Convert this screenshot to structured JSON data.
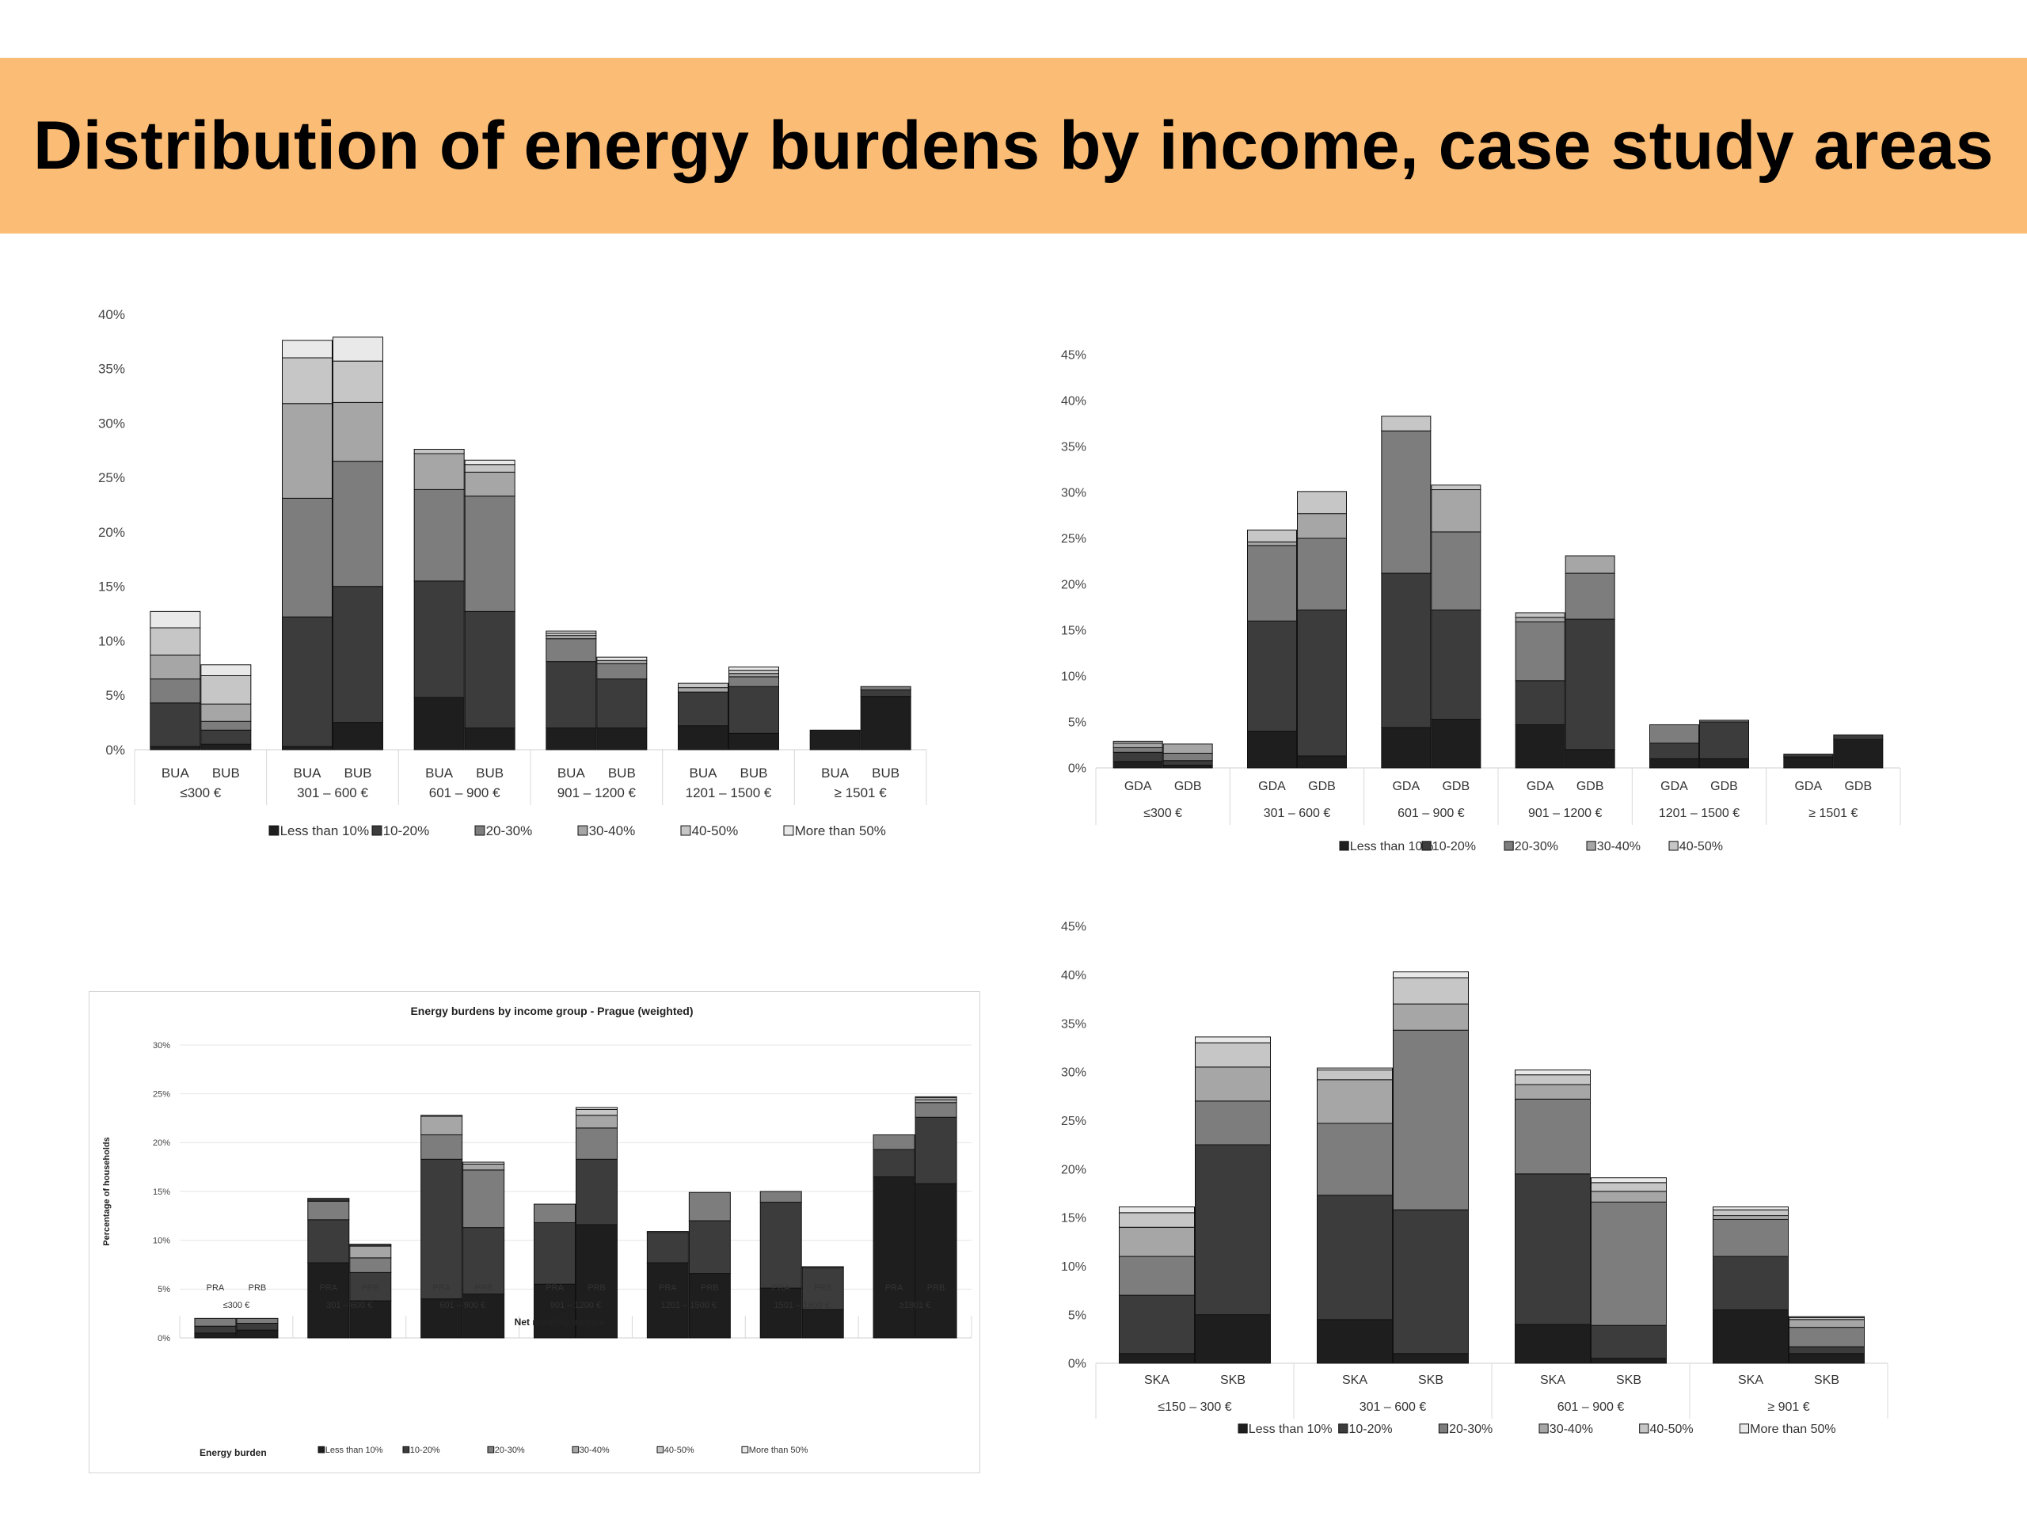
{
  "title": "Distribution of energy burdens by income, case study areas",
  "colors": {
    "banner": "#fbbd76",
    "Less than 10%": "#1e1e1e",
    "10-20%": "#3c3c3c",
    "20-30%": "#7d7d7d",
    "30-40%": "#a6a6a6",
    "40-50%": "#c6c6c6",
    "More than 50%": "#e9e9e9"
  },
  "chart_data": [
    {
      "type": "bar",
      "stacked": true,
      "title": "",
      "ylim": [
        0,
        40
      ],
      "yticks": [
        "0%",
        "5%",
        "10%",
        "15%",
        "20%",
        "25%",
        "30%",
        "35%",
        "40%"
      ],
      "groups": [
        "≤300 €",
        "301 – 600 €",
        "601 – 900 €",
        "901 – 1200 €",
        "1201 – 1500 €",
        "≥ 1501 €"
      ],
      "subcategories": [
        "BUA",
        "BUB"
      ],
      "legend_position": "bottom",
      "series": [
        {
          "name": "Less than 10%",
          "values": [
            [
              0.3,
              0.5
            ],
            [
              0.3,
              2.5
            ],
            [
              4.8,
              2.0
            ],
            [
              2.0,
              2.0
            ],
            [
              2.2,
              1.5
            ],
            [
              1.8,
              4.9
            ]
          ]
        },
        {
          "name": "10-20%",
          "values": [
            [
              4.0,
              1.3
            ],
            [
              11.9,
              12.5
            ],
            [
              10.7,
              10.7
            ],
            [
              6.1,
              4.5
            ],
            [
              3.1,
              4.3
            ],
            [
              0.0,
              0.6
            ]
          ]
        },
        {
          "name": "20-30%",
          "values": [
            [
              2.2,
              0.8
            ],
            [
              10.9,
              11.5
            ],
            [
              8.4,
              10.6
            ],
            [
              2.1,
              1.4
            ],
            [
              0.0,
              0.9
            ],
            [
              0.0,
              0.3
            ]
          ]
        },
        {
          "name": "30-40%",
          "values": [
            [
              2.2,
              1.6
            ],
            [
              8.7,
              5.4
            ],
            [
              3.3,
              2.2
            ],
            [
              0.3,
              0.3
            ],
            [
              0.4,
              0.3
            ],
            [
              0.0,
              0.0
            ]
          ]
        },
        {
          "name": "40-50%",
          "values": [
            [
              2.5,
              2.6
            ],
            [
              4.2,
              3.8
            ],
            [
              0.4,
              0.7
            ],
            [
              0.2,
              0.0
            ],
            [
              0.4,
              0.3
            ],
            [
              0.0,
              0.0
            ]
          ]
        },
        {
          "name": "More than 50%",
          "values": [
            [
              1.5,
              1.0
            ],
            [
              1.6,
              2.2
            ],
            [
              0.0,
              0.4
            ],
            [
              0.2,
              0.3
            ],
            [
              0.0,
              0.3
            ],
            [
              0.0,
              0.0
            ]
          ]
        }
      ]
    },
    {
      "type": "bar",
      "stacked": true,
      "title": "",
      "ylim": [
        0,
        45
      ],
      "yticks": [
        "0%",
        "5%",
        "10%",
        "15%",
        "20%",
        "25%",
        "30%",
        "35%",
        "40%",
        "45%"
      ],
      "groups": [
        "≤300 €",
        "301 – 600 €",
        "601 – 900 €",
        "901 – 1200 €",
        "1201 – 1500 €",
        "≥ 1501 €"
      ],
      "subcategories": [
        "GDA",
        "GDB"
      ],
      "legend_position": "bottom",
      "series": [
        {
          "name": "Less than 10%",
          "values": [
            [
              0.7,
              0.3
            ],
            [
              4.0,
              1.3
            ],
            [
              4.4,
              5.3
            ],
            [
              4.7,
              2.0
            ],
            [
              1.0,
              1.0
            ],
            [
              1.2,
              3.1
            ]
          ]
        },
        {
          "name": "10-20%",
          "values": [
            [
              1.0,
              0.5
            ],
            [
              12.0,
              15.9
            ],
            [
              16.8,
              11.9
            ],
            [
              4.8,
              14.2
            ],
            [
              1.7,
              4.0
            ],
            [
              0.3,
              0.5
            ]
          ]
        },
        {
          "name": "20-30%",
          "values": [
            [
              0.5,
              0.8
            ],
            [
              8.2,
              7.8
            ],
            [
              15.5,
              8.5
            ],
            [
              6.4,
              5.0
            ],
            [
              2.0,
              0.2
            ],
            [
              0.0,
              0.0
            ]
          ]
        },
        {
          "name": "30-40%",
          "values": [
            [
              0.5,
              1.0
            ],
            [
              0.4,
              2.7
            ],
            [
              0.0,
              4.6
            ],
            [
              0.5,
              1.9
            ],
            [
              0.0,
              0.0
            ],
            [
              0.0,
              0.0
            ]
          ]
        },
        {
          "name": "40-50%",
          "values": [
            [
              0.2,
              0.0
            ],
            [
              1.3,
              2.4
            ],
            [
              1.6,
              0.5
            ],
            [
              0.5,
              0.0
            ],
            [
              0.0,
              0.0
            ],
            [
              0.0,
              0.0
            ]
          ]
        }
      ]
    },
    {
      "type": "bar",
      "stacked": true,
      "title": "Energy burdens by income group - Prague (weighted)",
      "xlabel": "Net monthly income",
      "ylabel": "Percentage of households",
      "legend_title": "Energy burden",
      "ylim": [
        0,
        30
      ],
      "yticks": [
        "0%",
        "5%",
        "10%",
        "15%",
        "20%",
        "25%",
        "30%"
      ],
      "groups": [
        "≤300 €",
        "301 – 600 €",
        "601 – 900 €",
        "901 – 1200 €",
        "1201 – 1500 €",
        "1501 – 1800 €",
        "≥1801 €"
      ],
      "subcategories": [
        "PRA",
        "PRB"
      ],
      "legend_position": "bottom",
      "series": [
        {
          "name": "Less than 10%",
          "values": [
            [
              0.5,
              0.8
            ],
            [
              7.7,
              3.8
            ],
            [
              4.0,
              4.5
            ],
            [
              5.5,
              11.6
            ],
            [
              7.7,
              6.6
            ],
            [
              5.1,
              2.9
            ],
            [
              16.5,
              15.8
            ]
          ]
        },
        {
          "name": "10-20%",
          "values": [
            [
              0.7,
              0.7
            ],
            [
              4.4,
              2.9
            ],
            [
              14.3,
              6.8
            ],
            [
              6.3,
              6.7
            ],
            [
              3.1,
              5.4
            ],
            [
              8.8,
              4.3
            ],
            [
              2.8,
              6.8
            ]
          ]
        },
        {
          "name": "20-30%",
          "values": [
            [
              0.8,
              0.5
            ],
            [
              1.9,
              1.5
            ],
            [
              2.5,
              5.9
            ],
            [
              1.9,
              3.2
            ],
            [
              0.0,
              2.9
            ],
            [
              1.1,
              0.0
            ],
            [
              1.5,
              1.5
            ]
          ]
        },
        {
          "name": "30-40%",
          "values": [
            [
              0.0,
              0.0
            ],
            [
              0.1,
              1.2
            ],
            [
              1.9,
              0.6
            ],
            [
              0.0,
              1.3
            ],
            [
              0.1,
              0.0
            ],
            [
              0.0,
              0.1
            ],
            [
              0.0,
              0.3
            ]
          ]
        },
        {
          "name": "40-50%",
          "values": [
            [
              0.0,
              0.0
            ],
            [
              0.1,
              0.1
            ],
            [
              0.1,
              0.2
            ],
            [
              0.0,
              0.6
            ],
            [
              0.0,
              0.0
            ],
            [
              0.0,
              0.0
            ],
            [
              0.0,
              0.2
            ]
          ]
        },
        {
          "name": "More than 50%",
          "values": [
            [
              0.0,
              0.0
            ],
            [
              0.1,
              0.1
            ],
            [
              0.0,
              0.0
            ],
            [
              0.0,
              0.2
            ],
            [
              0.0,
              0.0
            ],
            [
              0.0,
              0.0
            ],
            [
              0.0,
              0.1
            ]
          ]
        }
      ]
    },
    {
      "type": "bar",
      "stacked": true,
      "title": "",
      "ylim": [
        0,
        45
      ],
      "yticks": [
        "0%",
        "5%",
        "10%",
        "15%",
        "20%",
        "25%",
        "30%",
        "35%",
        "40%",
        "45%"
      ],
      "groups": [
        "≤150 – 300 €",
        "301 – 600 €",
        "601 – 900 €",
        "≥ 901 €"
      ],
      "subcategories": [
        "SKA",
        "SKB"
      ],
      "legend_position": "bottom",
      "series": [
        {
          "name": "Less than 10%",
          "values": [
            [
              1.0,
              5.0
            ],
            [
              4.5,
              1.0
            ],
            [
              4.0,
              0.5
            ],
            [
              5.5,
              1.0
            ]
          ]
        },
        {
          "name": "10-20%",
          "values": [
            [
              6.0,
              17.5
            ],
            [
              12.8,
              14.8
            ],
            [
              15.5,
              3.4
            ],
            [
              5.5,
              0.7
            ]
          ]
        },
        {
          "name": "20-30%",
          "values": [
            [
              4.0,
              4.5
            ],
            [
              7.4,
              18.5
            ],
            [
              7.7,
              12.7
            ],
            [
              3.8,
              2.0
            ]
          ]
        },
        {
          "name": "30-40%",
          "values": [
            [
              3.0,
              3.5
            ],
            [
              4.5,
              2.7
            ],
            [
              1.5,
              1.1
            ],
            [
              0.4,
              0.8
            ]
          ]
        },
        {
          "name": "40-50%",
          "values": [
            [
              1.5,
              2.5
            ],
            [
              1.0,
              2.7
            ],
            [
              1.0,
              0.9
            ],
            [
              0.6,
              0.2
            ]
          ]
        },
        {
          "name": "More than 50%",
          "values": [
            [
              0.6,
              0.6
            ],
            [
              0.2,
              0.6
            ],
            [
              0.5,
              0.5
            ],
            [
              0.3,
              0.1
            ]
          ]
        }
      ]
    }
  ]
}
